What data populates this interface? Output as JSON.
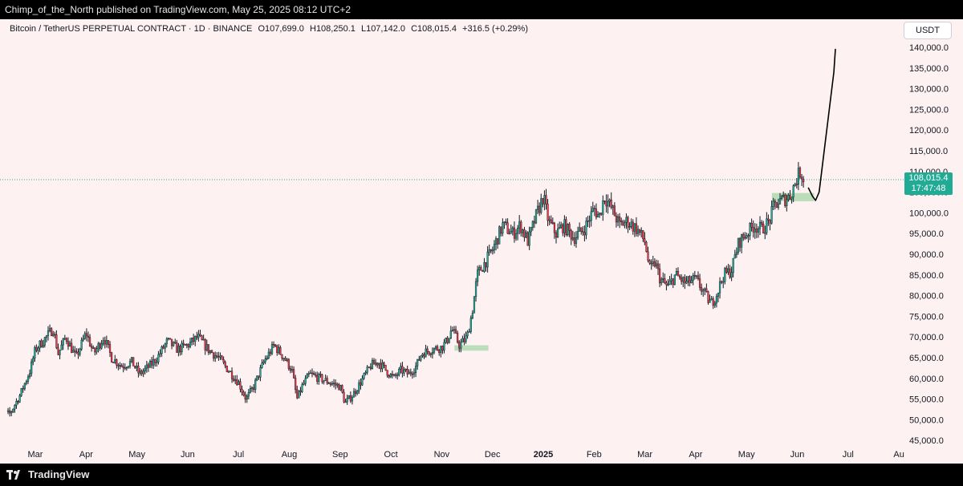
{
  "header": {
    "published_text": "Chimp_of_the_North published on TradingView.com, May 25, 2025 08:12 UTC+2"
  },
  "symbol_info": {
    "title": "Bitcoin / TetherUS PERPETUAL CONTRACT · 1D · BINANCE",
    "open": "O107,699.0",
    "high": "H108,250.1",
    "low": "L107,142.0",
    "close": "C108,015.4",
    "change": "+316.5 (+0.29%)"
  },
  "currency": "USDT",
  "last_price": {
    "value": "108,015.4",
    "countdown": "17:47:48",
    "price": 108015.4
  },
  "footer": {
    "brand": "TradingView"
  },
  "colors": {
    "up": "#22ab94",
    "down": "#f23645",
    "wick": "#131722",
    "zone": "#a5d6a7",
    "price_line": "#22ab94",
    "background": "#fdf2f1"
  },
  "chart_data": {
    "type": "candlestick",
    "y_axis": {
      "min": 45000,
      "max": 140000,
      "ticks": [
        "140,000.0",
        "135,000.0",
        "130,000.0",
        "125,000.0",
        "120,000.0",
        "115,000.0",
        "110,000.0",
        "105,000.0",
        "100,000.0",
        "95,000.0",
        "90,000.0",
        "85,000.0",
        "80,000.0",
        "75,000.0",
        "70,000.0",
        "65,000.0",
        "60,000.0",
        "55,000.0",
        "50,000.0",
        "45,000.0"
      ],
      "tick_values": [
        140000,
        135000,
        130000,
        125000,
        120000,
        115000,
        110000,
        105000,
        100000,
        95000,
        90000,
        85000,
        80000,
        75000,
        70000,
        65000,
        60000,
        55000,
        50000,
        45000
      ]
    },
    "x_axis": {
      "labels": [
        {
          "text": "Mar",
          "month": 2
        },
        {
          "text": "Apr",
          "month": 3
        },
        {
          "text": "May",
          "month": 4
        },
        {
          "text": "Jun",
          "month": 5
        },
        {
          "text": "Jul",
          "month": 6
        },
        {
          "text": "Aug",
          "month": 7
        },
        {
          "text": "Sep",
          "month": 8
        },
        {
          "text": "Oct",
          "month": 9
        },
        {
          "text": "Nov",
          "month": 10
        },
        {
          "text": "Dec",
          "month": 11
        },
        {
          "text": "2025",
          "month": 12,
          "bold": true
        },
        {
          "text": "Feb",
          "month": 13
        },
        {
          "text": "Mar",
          "month": 14
        },
        {
          "text": "Apr",
          "month": 15
        },
        {
          "text": "May",
          "month": 16
        },
        {
          "text": "Jun",
          "month": 17
        },
        {
          "text": "Jul",
          "month": 18
        },
        {
          "text": "Au",
          "month": 19
        }
      ]
    },
    "path_points": [
      [
        1.2,
        51000
      ],
      [
        1.5,
        51500
      ],
      [
        1.7,
        56000
      ],
      [
        1.9,
        62000
      ],
      [
        2.0,
        67000
      ],
      [
        2.15,
        69000
      ],
      [
        2.35,
        72000
      ],
      [
        2.45,
        66000
      ],
      [
        2.6,
        70000
      ],
      [
        2.8,
        65000
      ],
      [
        3.0,
        71000
      ],
      [
        3.15,
        66000
      ],
      [
        3.35,
        70000
      ],
      [
        3.5,
        65000
      ],
      [
        3.7,
        63000
      ],
      [
        3.9,
        64000
      ],
      [
        4.05,
        61000
      ],
      [
        4.25,
        63000
      ],
      [
        4.4,
        65000
      ],
      [
        4.6,
        69000
      ],
      [
        4.8,
        67000
      ],
      [
        5.0,
        68000
      ],
      [
        5.2,
        70000
      ],
      [
        5.4,
        67000
      ],
      [
        5.6,
        65000
      ],
      [
        5.8,
        62000
      ],
      [
        6.0,
        59000
      ],
      [
        6.15,
        55000
      ],
      [
        6.3,
        58000
      ],
      [
        6.5,
        64000
      ],
      [
        6.7,
        68000
      ],
      [
        6.9,
        65000
      ],
      [
        7.05,
        62000
      ],
      [
        7.15,
        55000
      ],
      [
        7.25,
        58000
      ],
      [
        7.4,
        61000
      ],
      [
        7.6,
        60000
      ],
      [
        7.8,
        59000
      ],
      [
        8.0,
        58000
      ],
      [
        8.1,
        54000
      ],
      [
        8.25,
        56000
      ],
      [
        8.45,
        60000
      ],
      [
        8.6,
        63000
      ],
      [
        8.75,
        64000
      ],
      [
        8.9,
        62000
      ],
      [
        9.05,
        60000
      ],
      [
        9.2,
        62000
      ],
      [
        9.35,
        61000
      ],
      [
        9.5,
        63000
      ],
      [
        9.6,
        66000
      ],
      [
        9.8,
        67000
      ],
      [
        10.0,
        67500
      ],
      [
        10.1,
        69000
      ],
      [
        10.2,
        72000
      ],
      [
        10.35,
        68000
      ],
      [
        10.5,
        70000
      ],
      [
        10.6,
        76000
      ],
      [
        10.7,
        85000
      ],
      [
        10.85,
        88000
      ],
      [
        11.0,
        91000
      ],
      [
        11.2,
        97000
      ],
      [
        11.4,
        95000
      ],
      [
        11.55,
        97000
      ],
      [
        11.7,
        93000
      ],
      [
        11.85,
        99000
      ],
      [
        12.0,
        104000
      ],
      [
        12.1,
        98000
      ],
      [
        12.25,
        95000
      ],
      [
        12.4,
        97000
      ],
      [
        12.6,
        94000
      ],
      [
        12.8,
        96000
      ],
      [
        13.0,
        101000
      ],
      [
        13.1,
        99000
      ],
      [
        13.2,
        104000
      ],
      [
        13.35,
        101000
      ],
      [
        13.5,
        97000
      ],
      [
        13.65,
        98000
      ],
      [
        13.85,
        96000
      ],
      [
        14.0,
        93000
      ],
      [
        14.1,
        86000
      ],
      [
        14.2,
        88000
      ],
      [
        14.3,
        84000
      ],
      [
        14.45,
        82000
      ],
      [
        14.6,
        85000
      ],
      [
        14.8,
        83000
      ],
      [
        15.0,
        84000
      ],
      [
        15.15,
        81000
      ],
      [
        15.3,
        78000
      ],
      [
        15.4,
        80000
      ],
      [
        15.55,
        85000
      ],
      [
        15.7,
        86000
      ],
      [
        15.85,
        93000
      ],
      [
        16.0,
        95000
      ],
      [
        16.15,
        97000
      ],
      [
        16.3,
        96000
      ],
      [
        16.45,
        98000
      ],
      [
        16.55,
        102000
      ],
      [
        16.7,
        103000
      ],
      [
        16.85,
        104000
      ],
      [
        16.95,
        107000
      ],
      [
        17.05,
        110000
      ],
      [
        17.15,
        108000
      ]
    ],
    "support_zones": [
      {
        "x0": 10.25,
        "x1": 10.92,
        "y0": 66700,
        "y1": 68000
      },
      {
        "x0": 16.5,
        "x1": 17.33,
        "y0": 102800,
        "y1": 104800
      }
    ],
    "projection_path": [
      [
        17.22,
        106000
      ],
      [
        17.3,
        104000
      ],
      [
        17.36,
        103000
      ],
      [
        17.43,
        105000
      ],
      [
        17.5,
        112000
      ],
      [
        17.58,
        120000
      ],
      [
        17.66,
        128000
      ],
      [
        17.72,
        134000
      ],
      [
        17.75,
        139500
      ]
    ]
  }
}
